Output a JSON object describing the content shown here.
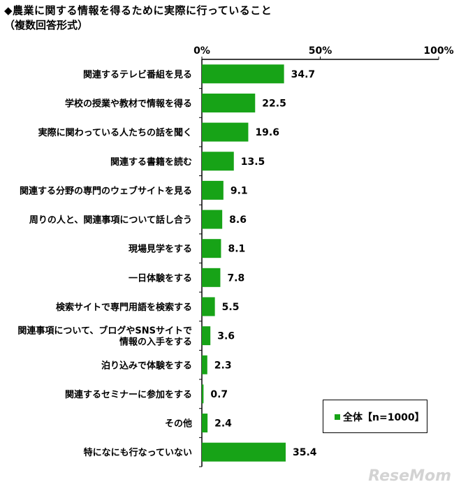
{
  "title": "◆農業に関する情報を得るために実際に行っていること",
  "subtitle": "（複数回答形式）",
  "colors": {
    "bar": "#17a317",
    "axis": "#000000"
  },
  "legend": {
    "label": "全体【n=1000】"
  },
  "watermark": "ReseMom",
  "chart_data": {
    "type": "bar",
    "orientation": "horizontal",
    "categories": [
      "関連するテレビ番組を見る",
      "学校の授業や教材で情報を得る",
      "実際に関わっている人たちの話を聞く",
      "関連する書籍を読む",
      "関連する分野の専門のウェブサイトを見る",
      "周りの人と、関連事項について話し合う",
      "現場見学をする",
      "一日体験をする",
      "検索サイトで専門用語を検索する",
      "関連事項について、ブログやSNSサイトで\n情報の入手をする",
      "泊り込みで体験をする",
      "関連するセミナーに参加をする",
      "その他",
      "特になにも行なっていない"
    ],
    "series": [
      {
        "name": "全体【n=1000】",
        "values": [
          34.7,
          22.5,
          19.6,
          13.5,
          9.1,
          8.6,
          8.1,
          7.8,
          5.5,
          3.6,
          2.3,
          0.7,
          2.4,
          35.4
        ]
      }
    ],
    "value_labels": [
      "34.7",
      "22.5",
      "19.6",
      "13.5",
      "9.1",
      "8.6",
      "8.1",
      "7.8",
      "5.5",
      "3.6",
      "2.3",
      "0.7",
      "2.4",
      "35.4"
    ],
    "xlim": [
      0,
      100
    ],
    "xticks": [
      0,
      50,
      100
    ],
    "xtick_labels": [
      "0%",
      "50%",
      "100%"
    ],
    "legend_position": "bottom-right"
  }
}
